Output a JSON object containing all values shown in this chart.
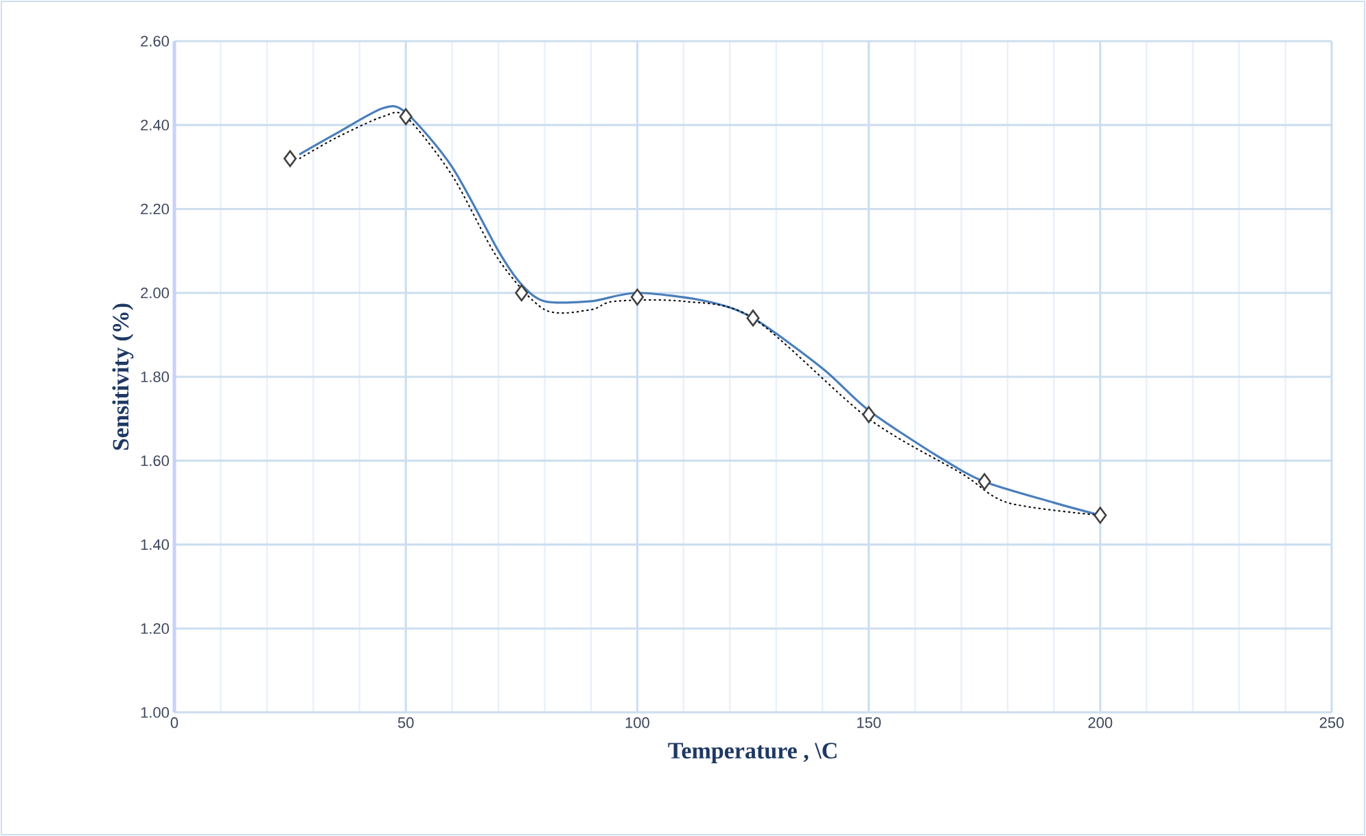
{
  "chart_data": {
    "type": "scatter",
    "xlabel": "Temperature , \\C",
    "ylabel": "Sensitivity (%)",
    "xlim": [
      0,
      250
    ],
    "xticks": [
      0,
      50,
      100,
      150,
      200,
      250
    ],
    "ylim": [
      1.0,
      2.6
    ],
    "yticks": [
      {
        "value": 1.0,
        "label": "1.00"
      },
      {
        "value": 1.2,
        "label": "1.20"
      },
      {
        "value": 1.4,
        "label": "1.40"
      },
      {
        "value": 1.6,
        "label": "1.60"
      },
      {
        "value": 1.8,
        "label": "1.80"
      },
      {
        "value": 2.0,
        "label": "2.00"
      },
      {
        "value": 2.2,
        "label": "2.20"
      },
      {
        "value": 2.4,
        "label": "2.40"
      },
      {
        "value": 2.6,
        "label": "2.60"
      }
    ],
    "grid": true,
    "series": [
      {
        "type": "line",
        "color": "#4a7ebb",
        "line_style": "solid",
        "marker": "none",
        "x": [
          27,
          35,
          45,
          50,
          60,
          70,
          75,
          80,
          90,
          100,
          115,
          125,
          140,
          150,
          165,
          175,
          190,
          200
        ],
        "values": [
          2.33,
          2.38,
          2.44,
          2.43,
          2.3,
          2.1,
          2.02,
          1.98,
          1.98,
          2.0,
          1.98,
          1.94,
          1.82,
          1.72,
          1.61,
          1.55,
          1.5,
          1.47
        ]
      },
      {
        "type": "line",
        "color": "#000000",
        "line_style": "dotted",
        "marker": "none",
        "x": [
          27,
          35,
          45,
          50,
          60,
          70,
          80,
          90,
          95,
          110,
          125,
          150,
          170,
          180,
          200
        ],
        "values": [
          2.32,
          2.37,
          2.42,
          2.42,
          2.28,
          2.08,
          1.96,
          1.96,
          1.98,
          1.98,
          1.94,
          1.7,
          1.57,
          1.5,
          1.47
        ]
      },
      {
        "color": "#404040",
        "marker": "diamond",
        "x": [
          25,
          50,
          75,
          100,
          125,
          150,
          175,
          200
        ],
        "values": [
          2.32,
          2.42,
          2.0,
          1.99,
          1.94,
          1.71,
          1.55,
          1.47
        ]
      }
    ]
  }
}
